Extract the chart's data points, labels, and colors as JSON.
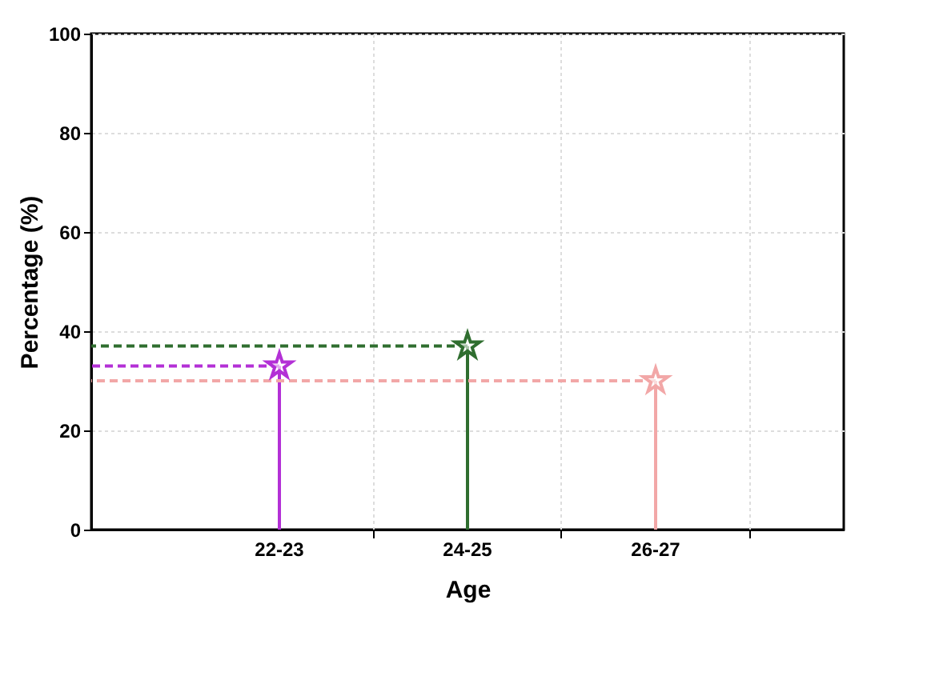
{
  "chart_data": {
    "type": "lollipop",
    "xlabel": "Age",
    "ylabel": "Percentage (%)",
    "categories": [
      "22-23",
      "24-25",
      "26-27"
    ],
    "values": [
      33,
      37,
      30
    ],
    "colors": [
      "#b330d6",
      "#2f6e2f",
      "#f2a7a7"
    ],
    "marker": "star",
    "ylim": [
      0,
      100
    ],
    "yticks": [
      0,
      20,
      40,
      60,
      80,
      100
    ],
    "grid": true,
    "ref_lines": [
      {
        "axis": "y",
        "value": 33,
        "color": "#b330d6",
        "line_style": "dashed"
      },
      {
        "axis": "y",
        "value": 37,
        "color": "#2f6e2f",
        "line_style": "dashed"
      },
      {
        "axis": "y",
        "value": 30,
        "color": "#f2a7a7",
        "line_style": "dashed"
      }
    ]
  }
}
